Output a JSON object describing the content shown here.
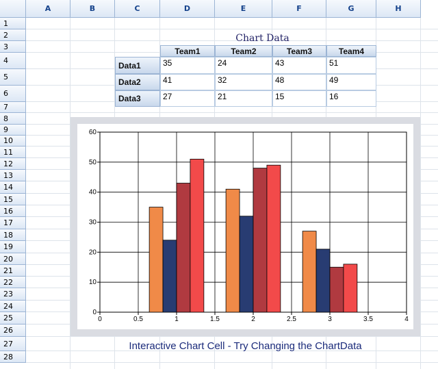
{
  "sheet": {
    "columns": [
      "A",
      "B",
      "C",
      "D",
      "E",
      "F",
      "G",
      "H"
    ],
    "rows": [
      "1",
      "2",
      "3",
      "4",
      "5",
      "6",
      "7",
      "8",
      "9",
      "10",
      "11",
      "12",
      "13",
      "14",
      "15",
      "16",
      "17",
      "18",
      "19",
      "20",
      "21",
      "22",
      "23",
      "24",
      "25",
      "26",
      "27",
      "28"
    ]
  },
  "table": {
    "title": "Chart Data",
    "headers": [
      "Team1",
      "Team2",
      "Team3",
      "Team4"
    ],
    "rows": [
      {
        "label": "Data1",
        "values": [
          "35",
          "24",
          "43",
          "51"
        ]
      },
      {
        "label": "Data2",
        "values": [
          "41",
          "32",
          "48",
          "49"
        ]
      },
      {
        "label": "Data3",
        "values": [
          "27",
          "21",
          "15",
          "16"
        ]
      }
    ]
  },
  "caption": "Interactive Chart Cell - Try Changing the ChartData",
  "chart_data": {
    "type": "bar",
    "categories": [
      "Data1",
      "Data2",
      "Data3"
    ],
    "x": [
      1,
      2,
      3
    ],
    "series": [
      {
        "name": "Team1",
        "values": [
          35,
          41,
          27
        ],
        "color": "#f08a48"
      },
      {
        "name": "Team2",
        "values": [
          24,
          32,
          21
        ],
        "color": "#283c72"
      },
      {
        "name": "Team3",
        "values": [
          43,
          48,
          15
        ],
        "color": "#b03a40"
      },
      {
        "name": "Team4",
        "values": [
          51,
          49,
          16
        ],
        "color": "#f24a4a"
      }
    ],
    "xlim": [
      0,
      4
    ],
    "ylim": [
      0,
      60
    ],
    "xticks": [
      "0",
      "0.5",
      "1",
      "1.5",
      "2",
      "2.5",
      "3",
      "3.5",
      "4"
    ],
    "yticks": [
      "0",
      "10",
      "20",
      "30",
      "40",
      "50",
      "60"
    ],
    "grid": true,
    "legend": "none"
  }
}
